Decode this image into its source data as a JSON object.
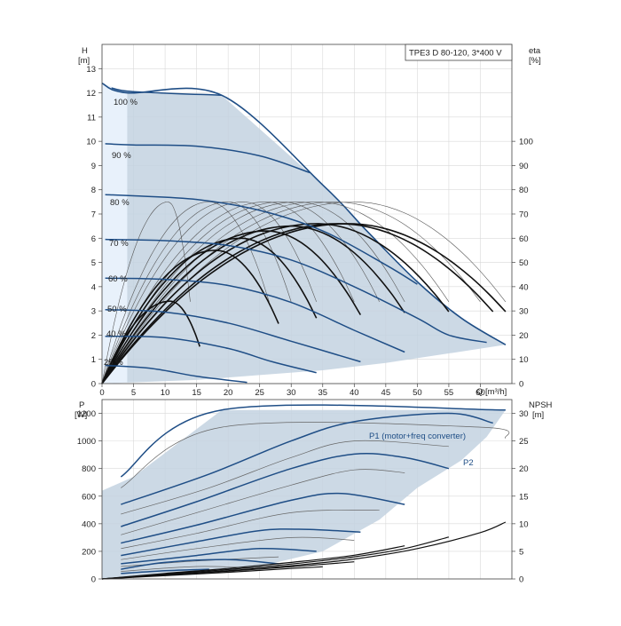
{
  "chart_data": [
    {
      "type": "line",
      "title": "TPE3 D 80-120, 3*400 V",
      "ylabel": "H",
      "ylabel_unit": "[m]",
      "y2label": "eta",
      "y2label_unit": "[%]",
      "xlabel": "Q [m³/h]",
      "xlim": [
        0,
        65
      ],
      "ylim": [
        0,
        14
      ],
      "y2lim": [
        0,
        140
      ],
      "xticks": [
        "0",
        "5",
        "10",
        "15",
        "20",
        "25",
        "30",
        "35",
        "40",
        "45",
        "50",
        "55",
        "60"
      ],
      "yticks": [
        "0",
        "1",
        "2",
        "3",
        "4",
        "5",
        "6",
        "7",
        "8",
        "9",
        "10",
        "11",
        "12",
        "13"
      ],
      "y2ticks": [
        "0",
        "10",
        "20",
        "30",
        "40",
        "50",
        "60",
        "70",
        "80",
        "90",
        "100"
      ],
      "envelope": {
        "top": [
          [
            0,
            12.4
          ],
          [
            4,
            12.0
          ],
          [
            19,
            11.9
          ],
          [
            35,
            8.2
          ],
          [
            42,
            6.3
          ],
          [
            50,
            4.2
          ],
          [
            57,
            2.7
          ],
          [
            64,
            1.6
          ]
        ],
        "bottom": [
          [
            64,
            1.6
          ],
          [
            45,
            0.85
          ],
          [
            35,
            0.55
          ],
          [
            25,
            0.35
          ],
          [
            15,
            0.15
          ],
          [
            0,
            0
          ]
        ]
      },
      "speed_labels": [
        "100 %",
        "90 %",
        "80 %",
        "70 %",
        "60 %",
        "50 %",
        "40 %",
        "25 %"
      ],
      "speed_curves": [
        {
          "name": "100 %",
          "points": [
            [
              1.5,
              12.2
            ],
            [
              5,
              12.05
            ],
            [
              19,
              11.9
            ]
          ]
        },
        {
          "name": "90 %",
          "points": [
            [
              0.5,
              9.9
            ],
            [
              5,
              9.85
            ],
            [
              15,
              9.8
            ],
            [
              25,
              9.4
            ],
            [
              33,
              8.7
            ]
          ]
        },
        {
          "name": "80 %",
          "points": [
            [
              0.5,
              7.8
            ],
            [
              5,
              7.75
            ],
            [
              15,
              7.6
            ],
            [
              25,
              7.15
            ],
            [
              35,
              6.3
            ],
            [
              45,
              4.9
            ],
            [
              50,
              4.1
            ]
          ]
        },
        {
          "name": "70 %",
          "points": [
            [
              0.5,
              5.95
            ],
            [
              10,
              5.9
            ],
            [
              20,
              5.7
            ],
            [
              30,
              5.1
            ],
            [
              40,
              4.0
            ],
            [
              50,
              2.7
            ],
            [
              55,
              2.0
            ],
            [
              61,
              1.7
            ]
          ]
        },
        {
          "name": "60 %",
          "points": [
            [
              0.5,
              4.35
            ],
            [
              10,
              4.3
            ],
            [
              20,
              4.05
            ],
            [
              30,
              3.35
            ],
            [
              40,
              2.2
            ],
            [
              48,
              1.3
            ]
          ]
        },
        {
          "name": "50 %",
          "points": [
            [
              0.5,
              3.05
            ],
            [
              10,
              2.95
            ],
            [
              20,
              2.5
            ],
            [
              30,
              1.75
            ],
            [
              41,
              0.9
            ]
          ]
        },
        {
          "name": "40 %",
          "points": [
            [
              0.5,
              1.95
            ],
            [
              10,
              1.9
            ],
            [
              20,
              1.45
            ],
            [
              27,
              0.9
            ],
            [
              34,
              0.45
            ]
          ]
        },
        {
          "name": "25 %",
          "points": [
            [
              0.5,
              0.75
            ],
            [
              8,
              0.62
            ],
            [
              15,
              0.3
            ],
            [
              23,
              0.05
            ]
          ]
        }
      ],
      "eff_peak_thin": 75,
      "eff_peak_thick": 66,
      "eff_curves_thin": [
        {
          "end": 14,
          "peak": 10.5
        },
        {
          "end": 26.5,
          "peak": 17
        },
        {
          "end": 30,
          "peak": 20
        },
        {
          "end": 34,
          "peak": 22.5
        },
        {
          "end": 40,
          "peak": 26
        },
        {
          "end": 44,
          "peak": 28.5
        },
        {
          "end": 48,
          "peak": 31
        },
        {
          "end": 55,
          "peak": 34
        },
        {
          "end": 60,
          "peak": 37
        },
        {
          "end": 64,
          "peak": 40
        }
      ],
      "eff_curves_thick": [
        {
          "end": 15.5,
          "peak": 10.8,
          "peak_eta": 34
        },
        {
          "end": 28,
          "peak": 18,
          "peak_eta": 55
        },
        {
          "end": 34,
          "peak": 22,
          "peak_eta": 60
        },
        {
          "end": 41,
          "peak": 26,
          "peak_eta": 63
        },
        {
          "end": 48,
          "peak": 30,
          "peak_eta": 65
        },
        {
          "end": 55,
          "peak": 34,
          "peak_eta": 66
        },
        {
          "end": 62,
          "peak": 37.5,
          "peak_eta": 66
        },
        {
          "end": 64,
          "peak": 39,
          "peak_eta": 66
        }
      ]
    },
    {
      "type": "line",
      "ylabel": "P",
      "ylabel_unit": "[W]",
      "y2label": "NPSH",
      "y2label_unit": "[m]",
      "xlim": [
        0,
        65
      ],
      "ylim": [
        0,
        1300
      ],
      "y2lim": [
        0,
        32.5
      ],
      "yticks": [
        "0",
        "200",
        "400",
        "600",
        "800",
        "1000",
        "1200"
      ],
      "y2ticks": [
        "0",
        "5",
        "10",
        "15",
        "20",
        "25",
        "30"
      ],
      "legend": [
        "P1 (motor+freq converter)",
        "P2"
      ],
      "envelope": {
        "top": [
          [
            0,
            640
          ],
          [
            5,
            740
          ],
          [
            19,
            1225
          ],
          [
            64,
            1225
          ],
          [
            61,
            1030
          ],
          [
            57,
            860
          ],
          [
            50,
            660
          ],
          [
            44,
            430
          ],
          [
            35,
            200
          ],
          [
            25,
            90
          ],
          [
            15,
            30
          ],
          [
            0,
            0
          ]
        ]
      },
      "p1_curves": [
        [
          [
            3,
            740
          ],
          [
            19,
            1225
          ],
          [
            64,
            1225
          ]
        ],
        [
          [
            3,
            540
          ],
          [
            17,
            760
          ],
          [
            30,
            1000
          ],
          [
            40,
            1140
          ],
          [
            55,
            1200
          ],
          [
            62,
            1130
          ]
        ],
        [
          [
            3,
            380
          ],
          [
            15,
            560
          ],
          [
            30,
            800
          ],
          [
            40,
            905
          ],
          [
            48,
            880
          ],
          [
            55,
            800
          ]
        ],
        [
          [
            3,
            260
          ],
          [
            15,
            390
          ],
          [
            30,
            570
          ],
          [
            38,
            620
          ],
          [
            48,
            540
          ]
        ],
        [
          [
            3,
            170
          ],
          [
            15,
            270
          ],
          [
            25,
            350
          ],
          [
            32,
            360
          ],
          [
            41,
            340
          ]
        ],
        [
          [
            3,
            110
          ],
          [
            15,
            170
          ],
          [
            25,
            220
          ],
          [
            34,
            200
          ]
        ],
        [
          [
            3,
            70
          ],
          [
            10,
            120
          ],
          [
            20,
            140
          ],
          [
            28,
            110
          ]
        ],
        [
          [
            3,
            40
          ],
          [
            10,
            60
          ],
          [
            17,
            70
          ]
        ]
      ],
      "p2_curves": [
        [
          [
            3,
            660
          ],
          [
            19,
            1100
          ],
          [
            60,
            1100
          ],
          [
            64,
            1020
          ]
        ],
        [
          [
            3,
            470
          ],
          [
            17,
            660
          ],
          [
            30,
            880
          ],
          [
            40,
            1000
          ],
          [
            55,
            960
          ]
        ],
        [
          [
            3,
            320
          ],
          [
            15,
            480
          ],
          [
            30,
            680
          ],
          [
            40,
            790
          ],
          [
            48,
            770
          ]
        ],
        [
          [
            3,
            220
          ],
          [
            15,
            330
          ],
          [
            30,
            480
          ],
          [
            44,
            500
          ]
        ],
        [
          [
            3,
            140
          ],
          [
            15,
            220
          ],
          [
            30,
            300
          ],
          [
            40,
            280
          ]
        ],
        [
          [
            3,
            90
          ],
          [
            15,
            130
          ],
          [
            28,
            160
          ]
        ],
        [
          [
            3,
            55
          ],
          [
            15,
            90
          ],
          [
            24,
            80
          ]
        ]
      ],
      "npsh_curves": [
        [
          [
            0,
            0
          ],
          [
            10,
            0.8
          ],
          [
            20,
            1.5
          ],
          [
            30,
            2.4
          ],
          [
            40,
            3.6
          ],
          [
            50,
            5.5
          ],
          [
            60,
            8.4
          ],
          [
            64,
            10.3
          ]
        ],
        [
          [
            0,
            0
          ],
          [
            10,
            0.9
          ],
          [
            20,
            1.7
          ],
          [
            30,
            2.7
          ],
          [
            40,
            4.0
          ],
          [
            48,
            5.5
          ],
          [
            55,
            7.6
          ]
        ],
        [
          [
            0,
            0
          ],
          [
            10,
            1.0
          ],
          [
            20,
            1.9
          ],
          [
            30,
            3.0
          ],
          [
            40,
            4.3
          ],
          [
            48,
            6.0
          ]
        ],
        [
          [
            0,
            0
          ],
          [
            10,
            0.7
          ],
          [
            20,
            1.4
          ],
          [
            30,
            2.2
          ],
          [
            40,
            3.1
          ]
        ],
        [
          [
            0,
            0
          ],
          [
            10,
            0.6
          ],
          [
            20,
            1.2
          ],
          [
            30,
            1.9
          ],
          [
            35,
            2.2
          ]
        ]
      ]
    }
  ]
}
